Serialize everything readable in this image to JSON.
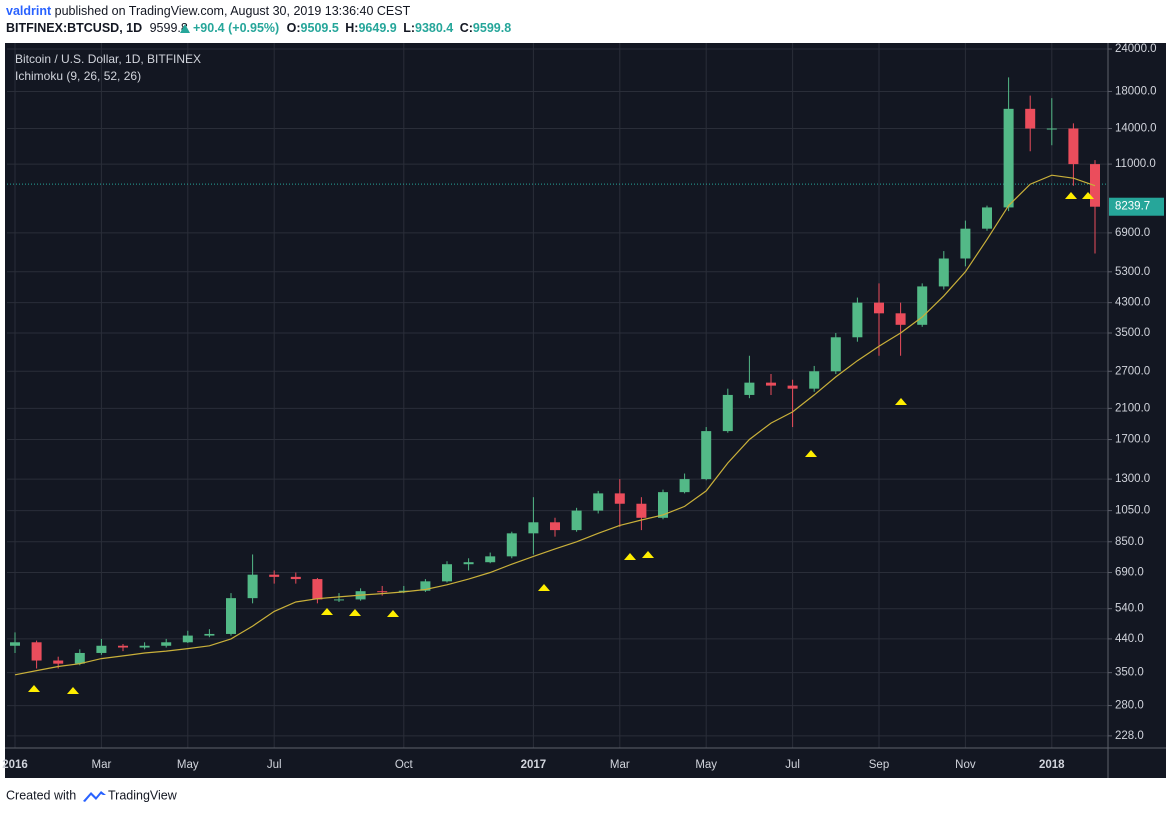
{
  "header": {
    "author": "valdrint",
    "published": "published on TradingView.com, August 30, 2019 13:36:40 CEST",
    "symbol": "BITFINEX:BTCUSD, 1D",
    "last": "9599.8",
    "change": "+90.4 (+0.95%)",
    "ohlc": [
      {
        "label": "O:",
        "value": "9509.5"
      },
      {
        "label": "H:",
        "value": "9649.9"
      },
      {
        "label": "L:",
        "value": "9380.4"
      },
      {
        "label": "C:",
        "value": "9599.8"
      }
    ]
  },
  "chart_data": {
    "type": "candlestick",
    "title": "Bitcoin / U.S. Dollar, 1D, BITFINEX",
    "indicator": "Ichimoku (9, 26, 52, 26)",
    "log_scale": true,
    "grid": true,
    "categories": [
      "2016",
      null,
      null,
      null,
      "Mar",
      null,
      null,
      null,
      "May",
      null,
      null,
      null,
      "Jul",
      null,
      null,
      null,
      null,
      null,
      "Oct",
      null,
      null,
      null,
      null,
      null,
      "2017",
      null,
      null,
      null,
      "Mar",
      null,
      null,
      null,
      "May",
      null,
      null,
      null,
      "Jul",
      null,
      null,
      null,
      "Sep",
      null,
      null,
      null,
      "Nov",
      null,
      null,
      null,
      "2018",
      null,
      null
    ],
    "candles": {
      "up_color": "#53b987",
      "down_color": "#eb4d5c",
      "open": [
        420,
        430,
        380,
        372,
        400,
        420,
        415,
        420,
        430,
        450,
        455,
        580,
        680,
        670,
        660,
        575,
        575,
        608,
        605,
        610,
        650,
        730,
        740,
        770,
        900,
        970,
        920,
        1050,
        1180,
        1100,
        1000,
        1190,
        1300,
        1800,
        2300,
        2500,
        2450,
        2400,
        2700,
        3400,
        4300,
        4000,
        3700,
        4800,
        5800,
        7100,
        8200,
        16000,
        14000,
        14000,
        11000
      ],
      "high": [
        460,
        435,
        390,
        410,
        440,
        425,
        430,
        440,
        465,
        470,
        600,
        780,
        700,
        690,
        665,
        600,
        620,
        630,
        630,
        660,
        745,
        760,
        790,
        910,
        1150,
        1000,
        1070,
        1200,
        1300,
        1150,
        1210,
        1350,
        1850,
        2400,
        3000,
        2650,
        2550,
        2800,
        3500,
        4450,
        4900,
        4300,
        4900,
        6100,
        7500,
        8300,
        19800,
        17500,
        17200,
        14500,
        11300
      ],
      "low": [
        400,
        360,
        360,
        368,
        395,
        405,
        410,
        415,
        428,
        445,
        450,
        560,
        640,
        640,
        560,
        565,
        570,
        590,
        600,
        605,
        645,
        700,
        735,
        760,
        780,
        880,
        910,
        1030,
        940,
        920,
        990,
        1180,
        1290,
        1780,
        2250,
        2300,
        1850,
        2350,
        2650,
        3300,
        3000,
        3000,
        3650,
        4700,
        5500,
        7000,
        8000,
        12000,
        12500,
        9500,
        6000
      ],
      "close": [
        430,
        380,
        372,
        400,
        420,
        415,
        420,
        430,
        450,
        455,
        580,
        680,
        670,
        660,
        575,
        575,
        608,
        605,
        610,
        650,
        730,
        740,
        770,
        900,
        970,
        920,
        1050,
        1180,
        1100,
        1000,
        1190,
        1300,
        1800,
        2300,
        2500,
        2450,
        2400,
        2700,
        3400,
        4300,
        4000,
        3700,
        4800,
        5800,
        7100,
        8200,
        16000,
        14000,
        14000,
        11000,
        8239.7
      ]
    },
    "overlay": {
      "color": "#c9b03a",
      "values": [
        345,
        355,
        365,
        372,
        385,
        392,
        400,
        405,
        412,
        420,
        440,
        480,
        530,
        565,
        578,
        585,
        592,
        598,
        605,
        615,
        635,
        660,
        690,
        730,
        770,
        810,
        850,
        900,
        950,
        985,
        1020,
        1080,
        1200,
        1450,
        1700,
        1900,
        2050,
        2300,
        2600,
        2900,
        3200,
        3500,
        3900,
        4500,
        5300,
        6600,
        8300,
        9600,
        10200,
        10000,
        9500
      ]
    },
    "last_price": 9599.8,
    "last_price_color": "#26a69a",
    "current_price": 8239.7,
    "ylim": [
      210,
      25000
    ],
    "yticks": [
      {
        "value": 24000,
        "label": "24000.0"
      },
      {
        "value": 18000,
        "label": "18000.0"
      },
      {
        "value": 14000,
        "label": "14000.0"
      },
      {
        "value": 11000,
        "label": "11000.0"
      },
      {
        "value": 6900,
        "label": "6900.0"
      },
      {
        "value": 5300,
        "label": "5300.0"
      },
      {
        "value": 4300,
        "label": "4300.0"
      },
      {
        "value": 3500,
        "label": "3500.0"
      },
      {
        "value": 2700,
        "label": "2700.0"
      },
      {
        "value": 2100,
        "label": "2100.0"
      },
      {
        "value": 1700,
        "label": "1700.0"
      },
      {
        "value": 1300,
        "label": "1300.0"
      },
      {
        "value": 1050,
        "label": "1050.0"
      },
      {
        "value": 850,
        "label": "850.0"
      },
      {
        "value": 690,
        "label": "690.0"
      },
      {
        "value": 540,
        "label": "540.0"
      },
      {
        "value": 440,
        "label": "440.0"
      },
      {
        "value": 350,
        "label": "350.0"
      },
      {
        "value": 280,
        "label": "280.0"
      },
      {
        "value": 228,
        "label": "228.0"
      }
    ]
  },
  "footer": {
    "created_with": "Created with",
    "brand": "TradingView"
  }
}
